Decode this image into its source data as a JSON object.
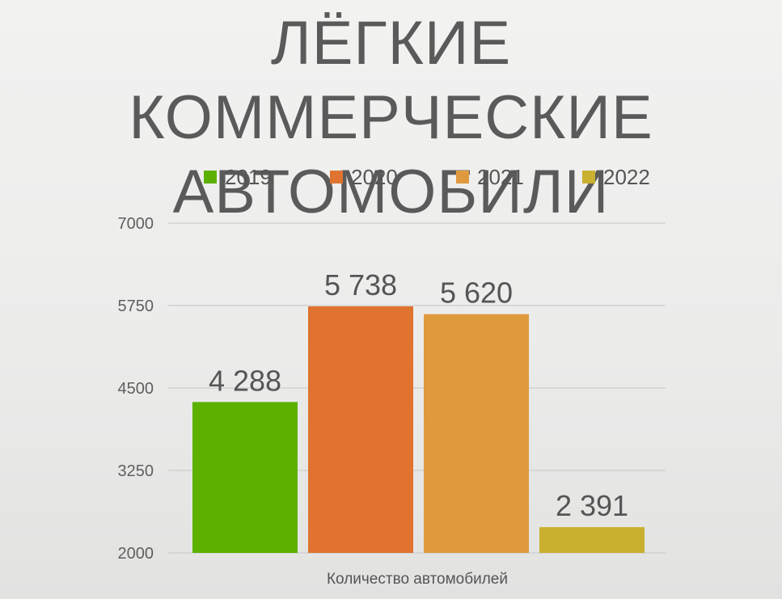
{
  "title": "ЛЁГКИЕ КОММЕРЧЕСКИЕ АВТОМОБИЛИ",
  "chart_data": {
    "type": "bar",
    "title": "ЛЁГКИЕ КОММЕРЧЕСКИЕ АВТОМОБИЛИ",
    "xlabel": "Количество автомобилей",
    "ylabel": "",
    "ylim": [
      2000,
      7000
    ],
    "yticks": [
      "7000",
      "5750",
      "4500",
      "3250",
      "2000"
    ],
    "grid": true,
    "legend_position": "top",
    "series": [
      {
        "name": "2019",
        "value": 4288,
        "label": "4 288",
        "color": "#5cb100"
      },
      {
        "name": "2020",
        "value": 5738,
        "label": "5 738",
        "color": "#e07330"
      },
      {
        "name": "2021",
        "value": 5620,
        "label": "5 620",
        "color": "#e09a3e"
      },
      {
        "name": "2022",
        "value": 2391,
        "label": "2 391",
        "color": "#c9b02f"
      }
    ]
  }
}
